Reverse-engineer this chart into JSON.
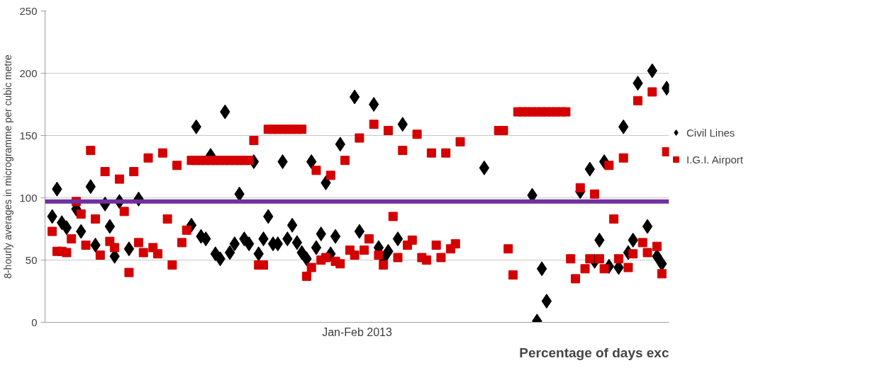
{
  "chart_data": {
    "type": "scatter",
    "xlabel": "Jan-Feb 2013",
    "ylabel": "8-hourly averages in microgramme per cubic metre",
    "categories": [
      null,
      null,
      null,
      null,
      null,
      null,
      null,
      null,
      null,
      null,
      null,
      null,
      null,
      null,
      null,
      null,
      null,
      null,
      null,
      null,
      null,
      null,
      null,
      null,
      null,
      null,
      null,
      null,
      null,
      null,
      null,
      null,
      null,
      null,
      null,
      null,
      null,
      null,
      null,
      null,
      null,
      null,
      null,
      null,
      null,
      null,
      null,
      null,
      null,
      null,
      null,
      null,
      null,
      null,
      null,
      null,
      null,
      null,
      null,
      null,
      null,
      null,
      null,
      null,
      null,
      null,
      null,
      null,
      null,
      null,
      null,
      null,
      null,
      null,
      null,
      null,
      null,
      null,
      null,
      null,
      null,
      null,
      null,
      null,
      null,
      null,
      null,
      null,
      null,
      null,
      null,
      null,
      null,
      null,
      null,
      null,
      null,
      null,
      null,
      null,
      null,
      null,
      null,
      null,
      null,
      null,
      null,
      null,
      null,
      null,
      null,
      null,
      null,
      null,
      null,
      null,
      null,
      null,
      null,
      null,
      null,
      null,
      null,
      null,
      null,
      null,
      null,
      null,
      null,
      null
    ],
    "series": [
      {
        "name": "Civil Lines",
        "color": "#000000",
        "marker": "diamond",
        "values": [
          null,
          85,
          107,
          80,
          76,
          null,
          91,
          73,
          null,
          109,
          62,
          null,
          95,
          77,
          53,
          97,
          null,
          59,
          null,
          99,
          null,
          null,
          null,
          null,
          null,
          null,
          null,
          null,
          null,
          null,
          78,
          157,
          69,
          67,
          134,
          55,
          51,
          169,
          56,
          63,
          103,
          67,
          63,
          129,
          55,
          67,
          85,
          63,
          63,
          129,
          67,
          78,
          64,
          56,
          51,
          129,
          60,
          71,
          112,
          55,
          69,
          143,
          null,
          null,
          181,
          73,
          null,
          null,
          175,
          60,
          51,
          57,
          null,
          67,
          159,
          null,
          null,
          null,
          null,
          null,
          null,
          null,
          null,
          null,
          null,
          null,
          null,
          null,
          null,
          null,
          null,
          124,
          null,
          null,
          null,
          null,
          null,
          null,
          null,
          null,
          null,
          102,
          1,
          43,
          17,
          null,
          null,
          null,
          null,
          null,
          null,
          105,
          null,
          123,
          49,
          66,
          129,
          45,
          null,
          44,
          157,
          56,
          66,
          192,
          null,
          77,
          202,
          53,
          47,
          188
        ]
      },
      {
        "name": "I.G.I. Airport",
        "color": "#d40000",
        "marker": "square",
        "values": [
          null,
          73,
          57,
          57,
          56,
          67,
          97,
          87,
          62,
          138,
          83,
          54,
          121,
          65,
          60,
          115,
          89,
          40,
          121,
          64,
          56,
          132,
          60,
          55,
          136,
          83,
          46,
          126,
          64,
          74,
          130,
          130,
          130,
          130,
          130,
          130,
          130,
          130,
          130,
          130,
          130,
          130,
          130,
          146,
          46,
          46,
          155,
          155,
          155,
          155,
          155,
          155,
          155,
          155,
          37,
          44,
          122,
          50,
          52,
          118,
          49,
          47,
          130,
          58,
          54,
          148,
          58,
          67,
          159,
          54,
          46,
          154,
          85,
          52,
          138,
          62,
          66,
          151,
          52,
          50,
          136,
          62,
          52,
          136,
          59,
          63,
          145,
          null,
          null,
          null,
          null,
          null,
          null,
          null,
          154,
          154,
          59,
          38,
          169,
          169,
          169,
          169,
          169,
          169,
          169,
          169,
          169,
          169,
          169,
          51,
          35,
          108,
          43,
          51,
          103,
          51,
          43,
          126,
          83,
          51,
          132,
          44,
          55,
          178,
          64,
          56,
          185,
          61,
          39,
          137
        ]
      }
    ],
    "ylim": [
      0,
      250
    ],
    "yticks": [
      0,
      50,
      100,
      150,
      200,
      250
    ],
    "grid": "y",
    "legend": "right",
    "tick_labels": "y",
    "ref_lines": [
      {
        "axis": "y",
        "value": 97,
        "color": "#7030a0"
      }
    ],
    "annotations": [
      "Percentage of days exc"
    ]
  }
}
